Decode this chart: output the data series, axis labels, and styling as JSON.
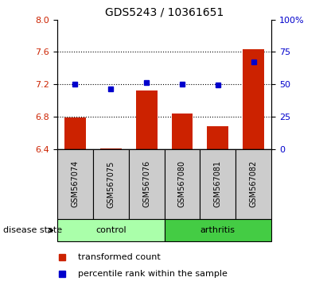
{
  "title": "GDS5243 / 10361651",
  "samples": [
    "GSM567074",
    "GSM567075",
    "GSM567076",
    "GSM567080",
    "GSM567081",
    "GSM567082"
  ],
  "red_values": [
    6.79,
    6.41,
    7.12,
    6.84,
    6.68,
    7.63
  ],
  "blue_values": [
    7.2,
    7.14,
    7.22,
    7.2,
    7.19,
    7.48
  ],
  "ylim_left": [
    6.4,
    8.0
  ],
  "ylim_right": [
    0,
    100
  ],
  "yticks_left": [
    6.4,
    6.8,
    7.2,
    7.6,
    8.0
  ],
  "yticks_right": [
    0,
    25,
    50,
    75,
    100
  ],
  "ytick_labels_right": [
    "0",
    "25",
    "50",
    "75",
    "100%"
  ],
  "hlines": [
    6.8,
    7.2,
    7.6
  ],
  "bar_color": "#cc2200",
  "dot_color": "#0000cc",
  "bar_bottom": 6.4,
  "control_color": "#aaffaa",
  "arthritis_color": "#44cc44",
  "label_bg_color": "#cccccc",
  "legend_red_label": "transformed count",
  "legend_blue_label": "percentile rank within the sample",
  "disease_state_label": "disease state",
  "control_label": "control",
  "arthritis_label": "arthritis"
}
